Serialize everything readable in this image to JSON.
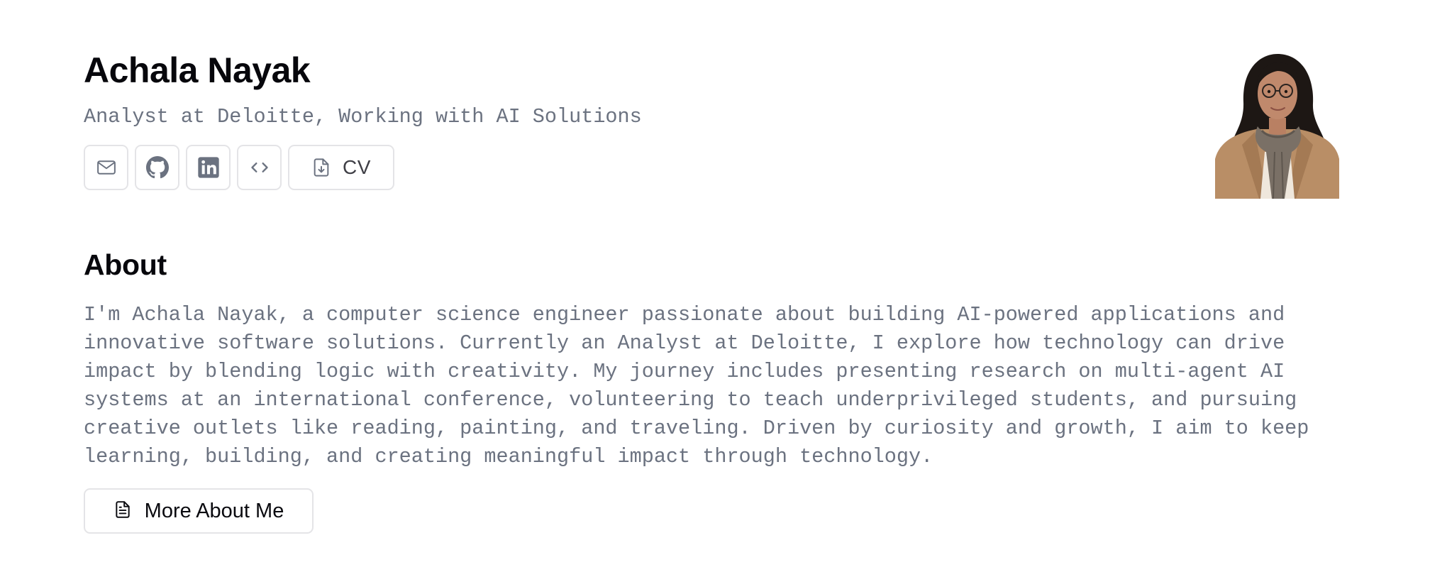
{
  "profile": {
    "name": "Achala Nayak",
    "subtitle": "Analyst at Deloitte, Working with AI Solutions"
  },
  "links": [
    {
      "icon": "mail-icon",
      "label": ""
    },
    {
      "icon": "github-icon",
      "label": ""
    },
    {
      "icon": "linkedin-icon",
      "label": ""
    },
    {
      "icon": "code-icon",
      "label": ""
    },
    {
      "icon": "file-download-icon",
      "label": "CV"
    }
  ],
  "about": {
    "heading": "About",
    "text": "I'm Achala Nayak, a computer science engineer passionate about building AI-powered applications and innovative software solutions. Currently an Analyst at Deloitte, I explore how technology can drive impact by blending logic with creativity. My journey includes presenting research on multi-agent AI systems at an international conference, volunteering to teach underprivileged students, and pursuing creative outlets like reading, painting, and traveling. Driven by curiosity and growth, I aim to keep learning, building, and creating meaningful impact through technology.",
    "more_button": "More About Me"
  },
  "colors": {
    "text_primary": "#07070c",
    "text_muted": "#6b7280",
    "border": "#e4e4e7",
    "icon": "#6b7280"
  }
}
